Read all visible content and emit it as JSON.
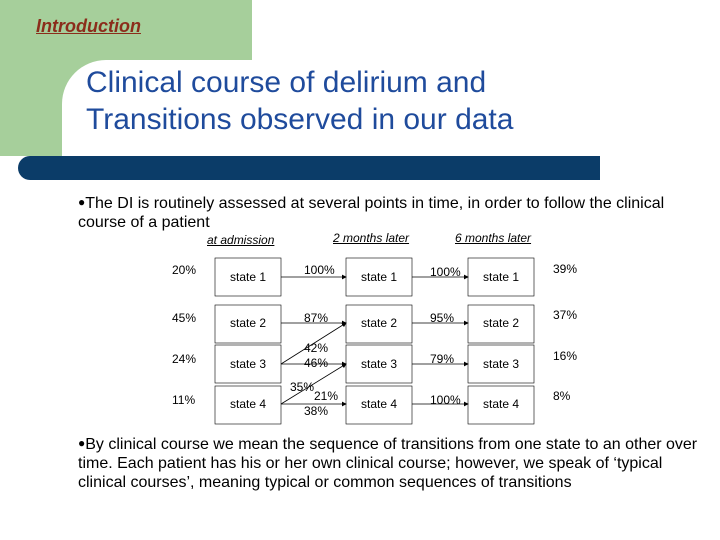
{
  "header": {
    "section_label": "Introduction"
  },
  "title": {
    "line1": "Clinical course of delirium and",
    "line2": "Transitions observed in our data"
  },
  "bullets": {
    "bullet1": "The DI is routinely assessed at several points in time, in order to follow the clinical course of a patient",
    "bullet2": "By clinical course we mean the sequence of transitions from one state to an other over time. Each patient has his or her own clinical course; however, we speak of ‘typical clinical courses’, meaning typical or common sequences of transitions"
  },
  "diagram": {
    "columns": [
      "at admission",
      "2 months later",
      "6 months later"
    ],
    "state_labels": [
      "state 1",
      "state 2",
      "state 3",
      "state 4"
    ],
    "admission_pcts": [
      "20%",
      "45%",
      "24%",
      "11%"
    ],
    "transitions_0_2": [
      "100%",
      "87%",
      "42%",
      "46%",
      "35%",
      "21%",
      "38%"
    ],
    "transitions_2_6": [
      "100%",
      "95%",
      "79%",
      "100%"
    ],
    "final_pcts": [
      "39%",
      "37%",
      "16%",
      "8%"
    ]
  }
}
